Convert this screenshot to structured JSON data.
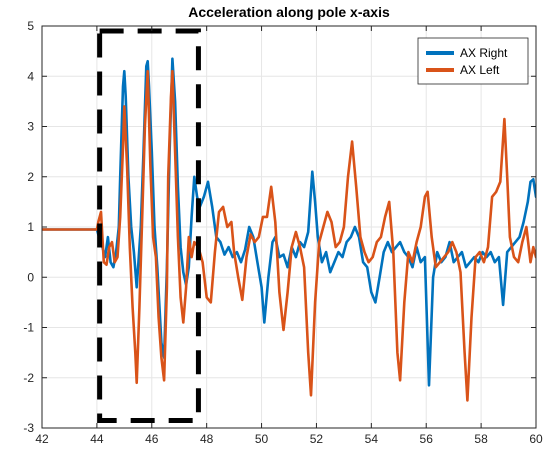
{
  "chart_data": {
    "type": "line",
    "title": "Acceleration along pole x-axis",
    "xlabel": "",
    "ylabel": "",
    "xlim": [
      42,
      60
    ],
    "ylim": [
      -3,
      5
    ],
    "xticks": [
      42,
      44,
      46,
      48,
      50,
      52,
      54,
      56,
      58,
      60
    ],
    "yticks": [
      -3,
      -2,
      -1,
      0,
      1,
      2,
      3,
      4,
      5
    ],
    "grid": true,
    "legend_position": "top-right",
    "highlight_box": {
      "x": [
        44.1,
        47.7
      ],
      "y": [
        -2.85,
        4.9
      ],
      "style": "dashed"
    },
    "series": [
      {
        "name": "AX Right",
        "color": "#0072BD",
        "points": [
          [
            42.0,
            0.95
          ],
          [
            42.5,
            0.95
          ],
          [
            43.0,
            0.95
          ],
          [
            43.5,
            0.95
          ],
          [
            44.0,
            0.95
          ],
          [
            44.05,
            0.85
          ],
          [
            44.2,
            0.6
          ],
          [
            44.3,
            0.4
          ],
          [
            44.4,
            0.8
          ],
          [
            44.5,
            0.3
          ],
          [
            44.6,
            0.2
          ],
          [
            44.7,
            0.5
          ],
          [
            44.8,
            1.0
          ],
          [
            44.85,
            2.0
          ],
          [
            44.95,
            3.8
          ],
          [
            45.0,
            4.1
          ],
          [
            45.05,
            3.6
          ],
          [
            45.15,
            2.0
          ],
          [
            45.25,
            1.0
          ],
          [
            45.35,
            0.5
          ],
          [
            45.45,
            -0.2
          ],
          [
            45.5,
            0.2
          ],
          [
            45.6,
            1.0
          ],
          [
            45.7,
            2.5
          ],
          [
            45.8,
            4.2
          ],
          [
            45.85,
            4.3
          ],
          [
            45.9,
            3.8
          ],
          [
            46.0,
            2.5
          ],
          [
            46.1,
            1.0
          ],
          [
            46.2,
            0.2
          ],
          [
            46.35,
            -1.3
          ],
          [
            46.45,
            -1.6
          ],
          [
            46.55,
            0.2
          ],
          [
            46.65,
            2.5
          ],
          [
            46.75,
            4.35
          ],
          [
            46.85,
            3.5
          ],
          [
            46.95,
            1.8
          ],
          [
            47.05,
            0.6
          ],
          [
            47.15,
            0.1
          ],
          [
            47.25,
            -0.15
          ],
          [
            47.35,
            0.2
          ],
          [
            47.45,
            1.2
          ],
          [
            47.55,
            2.0
          ],
          [
            47.65,
            1.6
          ],
          [
            47.75,
            1.4
          ],
          [
            47.9,
            1.6
          ],
          [
            48.05,
            1.9
          ],
          [
            48.2,
            1.4
          ],
          [
            48.35,
            0.8
          ],
          [
            48.5,
            0.7
          ],
          [
            48.65,
            0.45
          ],
          [
            48.8,
            0.6
          ],
          [
            48.95,
            0.4
          ],
          [
            49.1,
            0.5
          ],
          [
            49.25,
            0.3
          ],
          [
            49.4,
            0.55
          ],
          [
            49.55,
            1.0
          ],
          [
            49.7,
            0.8
          ],
          [
            49.85,
            0.3
          ],
          [
            50.0,
            -0.2
          ],
          [
            50.1,
            -0.9
          ],
          [
            50.25,
            0.0
          ],
          [
            50.4,
            0.7
          ],
          [
            50.5,
            0.8
          ],
          [
            50.65,
            0.4
          ],
          [
            50.8,
            0.45
          ],
          [
            50.95,
            0.2
          ],
          [
            51.1,
            0.6
          ],
          [
            51.25,
            0.4
          ],
          [
            51.4,
            0.7
          ],
          [
            51.55,
            0.6
          ],
          [
            51.7,
            0.9
          ],
          [
            51.85,
            2.1
          ],
          [
            51.95,
            1.5
          ],
          [
            52.05,
            0.8
          ],
          [
            52.2,
            0.3
          ],
          [
            52.35,
            0.5
          ],
          [
            52.5,
            0.1
          ],
          [
            52.65,
            0.3
          ],
          [
            52.8,
            0.5
          ],
          [
            52.95,
            0.4
          ],
          [
            53.1,
            0.7
          ],
          [
            53.25,
            0.8
          ],
          [
            53.4,
            1.0
          ],
          [
            53.55,
            0.8
          ],
          [
            53.7,
            0.3
          ],
          [
            53.85,
            0.2
          ],
          [
            54.0,
            -0.3
          ],
          [
            54.15,
            -0.5
          ],
          [
            54.3,
            0.0
          ],
          [
            54.45,
            0.5
          ],
          [
            54.6,
            0.7
          ],
          [
            54.75,
            0.5
          ],
          [
            54.9,
            0.6
          ],
          [
            55.05,
            0.7
          ],
          [
            55.2,
            0.5
          ],
          [
            55.35,
            0.4
          ],
          [
            55.5,
            0.2
          ],
          [
            55.65,
            0.6
          ],
          [
            55.8,
            0.3
          ],
          [
            55.95,
            0.4
          ],
          [
            56.1,
            -2.15
          ],
          [
            56.25,
            0.0
          ],
          [
            56.4,
            0.5
          ],
          [
            56.55,
            0.3
          ],
          [
            56.7,
            0.4
          ],
          [
            56.85,
            0.7
          ],
          [
            57.0,
            0.3
          ],
          [
            57.15,
            0.4
          ],
          [
            57.3,
            0.5
          ],
          [
            57.45,
            0.2
          ],
          [
            57.6,
            0.3
          ],
          [
            57.75,
            0.4
          ],
          [
            57.9,
            0.3
          ],
          [
            58.05,
            0.5
          ],
          [
            58.2,
            0.4
          ],
          [
            58.35,
            0.5
          ],
          [
            58.5,
            0.3
          ],
          [
            58.65,
            0.4
          ],
          [
            58.8,
            -0.55
          ],
          [
            58.95,
            0.5
          ],
          [
            59.1,
            0.6
          ],
          [
            59.25,
            0.7
          ],
          [
            59.4,
            0.8
          ],
          [
            59.55,
            1.1
          ],
          [
            59.7,
            1.5
          ],
          [
            59.8,
            1.9
          ],
          [
            59.9,
            1.95
          ],
          [
            60.0,
            1.6
          ]
        ]
      },
      {
        "name": "AX Left",
        "color": "#D95319",
        "points": [
          [
            42.0,
            0.95
          ],
          [
            42.5,
            0.95
          ],
          [
            43.0,
            0.95
          ],
          [
            43.5,
            0.95
          ],
          [
            44.0,
            0.95
          ],
          [
            44.05,
            1.1
          ],
          [
            44.15,
            1.3
          ],
          [
            44.25,
            0.3
          ],
          [
            44.35,
            0.25
          ],
          [
            44.45,
            0.6
          ],
          [
            44.55,
            0.7
          ],
          [
            44.65,
            0.3
          ],
          [
            44.75,
            0.4
          ],
          [
            44.85,
            1.2
          ],
          [
            44.95,
            2.6
          ],
          [
            45.0,
            3.4
          ],
          [
            45.1,
            2.2
          ],
          [
            45.2,
            0.6
          ],
          [
            45.3,
            -0.6
          ],
          [
            45.4,
            -1.5
          ],
          [
            45.45,
            -2.1
          ],
          [
            45.55,
            -0.6
          ],
          [
            45.65,
            1.2
          ],
          [
            45.75,
            3.0
          ],
          [
            45.85,
            4.1
          ],
          [
            45.95,
            2.2
          ],
          [
            46.05,
            0.8
          ],
          [
            46.15,
            0.4
          ],
          [
            46.25,
            -0.8
          ],
          [
            46.35,
            -1.6
          ],
          [
            46.45,
            -2.05
          ],
          [
            46.55,
            -0.2
          ],
          [
            46.6,
            2.0
          ],
          [
            46.7,
            3.6
          ],
          [
            46.75,
            4.1
          ],
          [
            46.85,
            2.5
          ],
          [
            46.95,
            0.8
          ],
          [
            47.05,
            -0.4
          ],
          [
            47.15,
            -0.9
          ],
          [
            47.25,
            -0.2
          ],
          [
            47.35,
            0.8
          ],
          [
            47.45,
            0.4
          ],
          [
            47.55,
            0.7
          ],
          [
            47.7,
            0.6
          ],
          [
            47.85,
            0.3
          ],
          [
            48.0,
            -0.4
          ],
          [
            48.15,
            -0.5
          ],
          [
            48.3,
            0.5
          ],
          [
            48.45,
            1.3
          ],
          [
            48.6,
            1.4
          ],
          [
            48.75,
            1.0
          ],
          [
            48.9,
            1.1
          ],
          [
            49.0,
            0.5
          ],
          [
            49.15,
            0.0
          ],
          [
            49.3,
            -0.45
          ],
          [
            49.45,
            0.4
          ],
          [
            49.6,
            0.85
          ],
          [
            49.75,
            0.7
          ],
          [
            49.9,
            0.8
          ],
          [
            50.05,
            1.2
          ],
          [
            50.2,
            1.2
          ],
          [
            50.35,
            1.8
          ],
          [
            50.5,
            1.1
          ],
          [
            50.65,
            -0.3
          ],
          [
            50.8,
            -1.05
          ],
          [
            50.95,
            -0.3
          ],
          [
            51.1,
            0.6
          ],
          [
            51.25,
            0.9
          ],
          [
            51.4,
            0.6
          ],
          [
            51.55,
            0.2
          ],
          [
            51.7,
            -1.5
          ],
          [
            51.8,
            -2.35
          ],
          [
            51.95,
            -0.5
          ],
          [
            52.1,
            0.7
          ],
          [
            52.25,
            1.0
          ],
          [
            52.4,
            1.3
          ],
          [
            52.55,
            1.1
          ],
          [
            52.7,
            0.6
          ],
          [
            52.85,
            0.7
          ],
          [
            53.0,
            1.0
          ],
          [
            53.15,
            2.0
          ],
          [
            53.3,
            2.7
          ],
          [
            53.45,
            1.8
          ],
          [
            53.6,
            0.8
          ],
          [
            53.75,
            0.5
          ],
          [
            53.9,
            0.3
          ],
          [
            54.05,
            0.4
          ],
          [
            54.2,
            0.7
          ],
          [
            54.35,
            0.8
          ],
          [
            54.5,
            1.2
          ],
          [
            54.65,
            1.5
          ],
          [
            54.8,
            0.5
          ],
          [
            54.95,
            -1.5
          ],
          [
            55.05,
            -2.05
          ],
          [
            55.2,
            -0.5
          ],
          [
            55.35,
            0.5
          ],
          [
            55.5,
            0.3
          ],
          [
            55.65,
            0.7
          ],
          [
            55.8,
            1.0
          ],
          [
            55.95,
            1.6
          ],
          [
            56.05,
            1.7
          ],
          [
            56.2,
            0.8
          ],
          [
            56.35,
            0.2
          ],
          [
            56.5,
            0.3
          ],
          [
            56.65,
            0.4
          ],
          [
            56.8,
            0.5
          ],
          [
            56.95,
            0.7
          ],
          [
            57.1,
            0.5
          ],
          [
            57.25,
            0.1
          ],
          [
            57.4,
            -1.5
          ],
          [
            57.5,
            -2.45
          ],
          [
            57.65,
            -0.8
          ],
          [
            57.8,
            0.4
          ],
          [
            57.95,
            0.5
          ],
          [
            58.1,
            0.3
          ],
          [
            58.25,
            0.6
          ],
          [
            58.4,
            1.6
          ],
          [
            58.55,
            1.7
          ],
          [
            58.7,
            1.9
          ],
          [
            58.85,
            3.15
          ],
          [
            58.95,
            2.0
          ],
          [
            59.05,
            0.8
          ],
          [
            59.2,
            0.4
          ],
          [
            59.35,
            0.3
          ],
          [
            59.5,
            0.7
          ],
          [
            59.65,
            1.0
          ],
          [
            59.8,
            0.3
          ],
          [
            59.9,
            0.6
          ],
          [
            60.0,
            0.4
          ]
        ]
      }
    ]
  }
}
